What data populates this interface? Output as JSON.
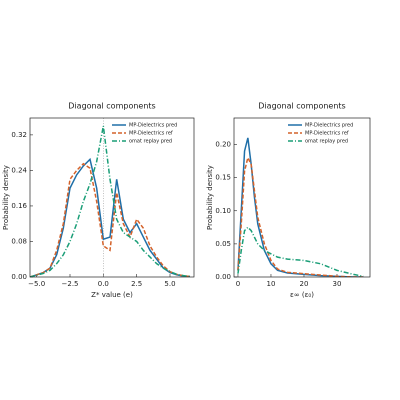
{
  "chart_data": [
    {
      "type": "line",
      "title": "Diagonal components",
      "xlabel": "Z* value (e)",
      "ylabel": "Probability density",
      "x": [
        -5.5,
        -5,
        -4.5,
        -4,
        -3.5,
        -3,
        -2.5,
        -2,
        -1.5,
        -1,
        -0.5,
        0,
        0.5,
        1,
        1.5,
        2,
        2.5,
        3,
        3.5,
        4,
        4.5,
        5,
        5.5,
        6,
        6.5
      ],
      "series": [
        {
          "name": "MP-Dielectrics pred",
          "color": "#1f6fa8",
          "style": "solid",
          "values": [
            0,
            0.005,
            0.01,
            0.02,
            0.05,
            0.11,
            0.2,
            0.23,
            0.25,
            0.265,
            0.2,
            0.085,
            0.09,
            0.22,
            0.13,
            0.1,
            0.12,
            0.09,
            0.06,
            0.04,
            0.02,
            0.01,
            0.005,
            0.002,
            0.001
          ]
        },
        {
          "name": "MP-Dielectrics ref",
          "color": "#d4622a",
          "style": "dashed",
          "values": [
            0,
            0.005,
            0.01,
            0.02,
            0.06,
            0.12,
            0.22,
            0.24,
            0.255,
            0.245,
            0.17,
            0.07,
            0.06,
            0.19,
            0.12,
            0.09,
            0.13,
            0.11,
            0.07,
            0.045,
            0.025,
            0.012,
            0.006,
            0.003,
            0.001
          ]
        },
        {
          "name": "omat replay pred",
          "color": "#1a9e77",
          "style": "dashdot",
          "values": [
            0,
            0.004,
            0.008,
            0.015,
            0.03,
            0.05,
            0.08,
            0.12,
            0.17,
            0.21,
            0.26,
            0.34,
            0.22,
            0.13,
            0.1,
            0.09,
            0.08,
            0.06,
            0.045,
            0.03,
            0.02,
            0.012,
            0.006,
            0.003,
            0.001
          ]
        }
      ],
      "xlim": [
        -5.5,
        6.8
      ],
      "ylim": [
        0,
        0.358
      ],
      "xticks": [
        {
          "value": -5,
          "label": "−5.0"
        },
        {
          "value": -2.5,
          "label": "−2.5"
        },
        {
          "value": 0,
          "label": "0.0"
        },
        {
          "value": 2.5,
          "label": "2.5"
        },
        {
          "value": 5,
          "label": "5.0"
        }
      ],
      "yticks": [
        {
          "value": 0,
          "label": "0.00"
        },
        {
          "value": 0.08,
          "label": "0.08"
        },
        {
          "value": 0.16,
          "label": "0.16"
        },
        {
          "value": 0.24,
          "label": "0.24"
        },
        {
          "value": 0.32,
          "label": "0.32"
        }
      ],
      "vline": 0,
      "legend": "upper right"
    },
    {
      "type": "line",
      "title": "Diagonal components",
      "xlabel": "ε∞ (ε₀)",
      "ylabel": "Probability density",
      "x": [
        0,
        1,
        2,
        3,
        4,
        5,
        6,
        8,
        10,
        12,
        15,
        20,
        25,
        30,
        35,
        38
      ],
      "series": [
        {
          "name": "MP-Dielectrics pred",
          "color": "#1f6fa8",
          "style": "solid",
          "values": [
            0.01,
            0.1,
            0.19,
            0.21,
            0.17,
            0.12,
            0.08,
            0.04,
            0.02,
            0.01,
            0.006,
            0.004,
            0.002,
            0.001,
            0,
            0
          ]
        },
        {
          "name": "MP-Dielectrics ref",
          "color": "#d4622a",
          "style": "dashed",
          "values": [
            0.01,
            0.08,
            0.16,
            0.18,
            0.17,
            0.13,
            0.09,
            0.05,
            0.025,
            0.012,
            0.007,
            0.005,
            0.003,
            0.001,
            0,
            0
          ]
        },
        {
          "name": "omat replay pred",
          "color": "#1a9e77",
          "style": "dashdot",
          "values": [
            0.005,
            0.04,
            0.07,
            0.075,
            0.07,
            0.06,
            0.05,
            0.04,
            0.035,
            0.03,
            0.027,
            0.025,
            0.02,
            0.01,
            0.004,
            0.001
          ]
        }
      ],
      "xlim": [
        -1.2,
        40
      ],
      "ylim": [
        0,
        0.24
      ],
      "xticks": [
        0,
        10,
        20,
        30
      ],
      "yticks": [
        {
          "value": 0,
          "label": "0.00"
        },
        {
          "value": 0.05,
          "label": "0.05"
        },
        {
          "value": 0.1,
          "label": "0.10"
        },
        {
          "value": 0.15,
          "label": "0.15"
        },
        {
          "value": 0.2,
          "label": "0.20"
        }
      ],
      "legend": "upper right"
    }
  ]
}
